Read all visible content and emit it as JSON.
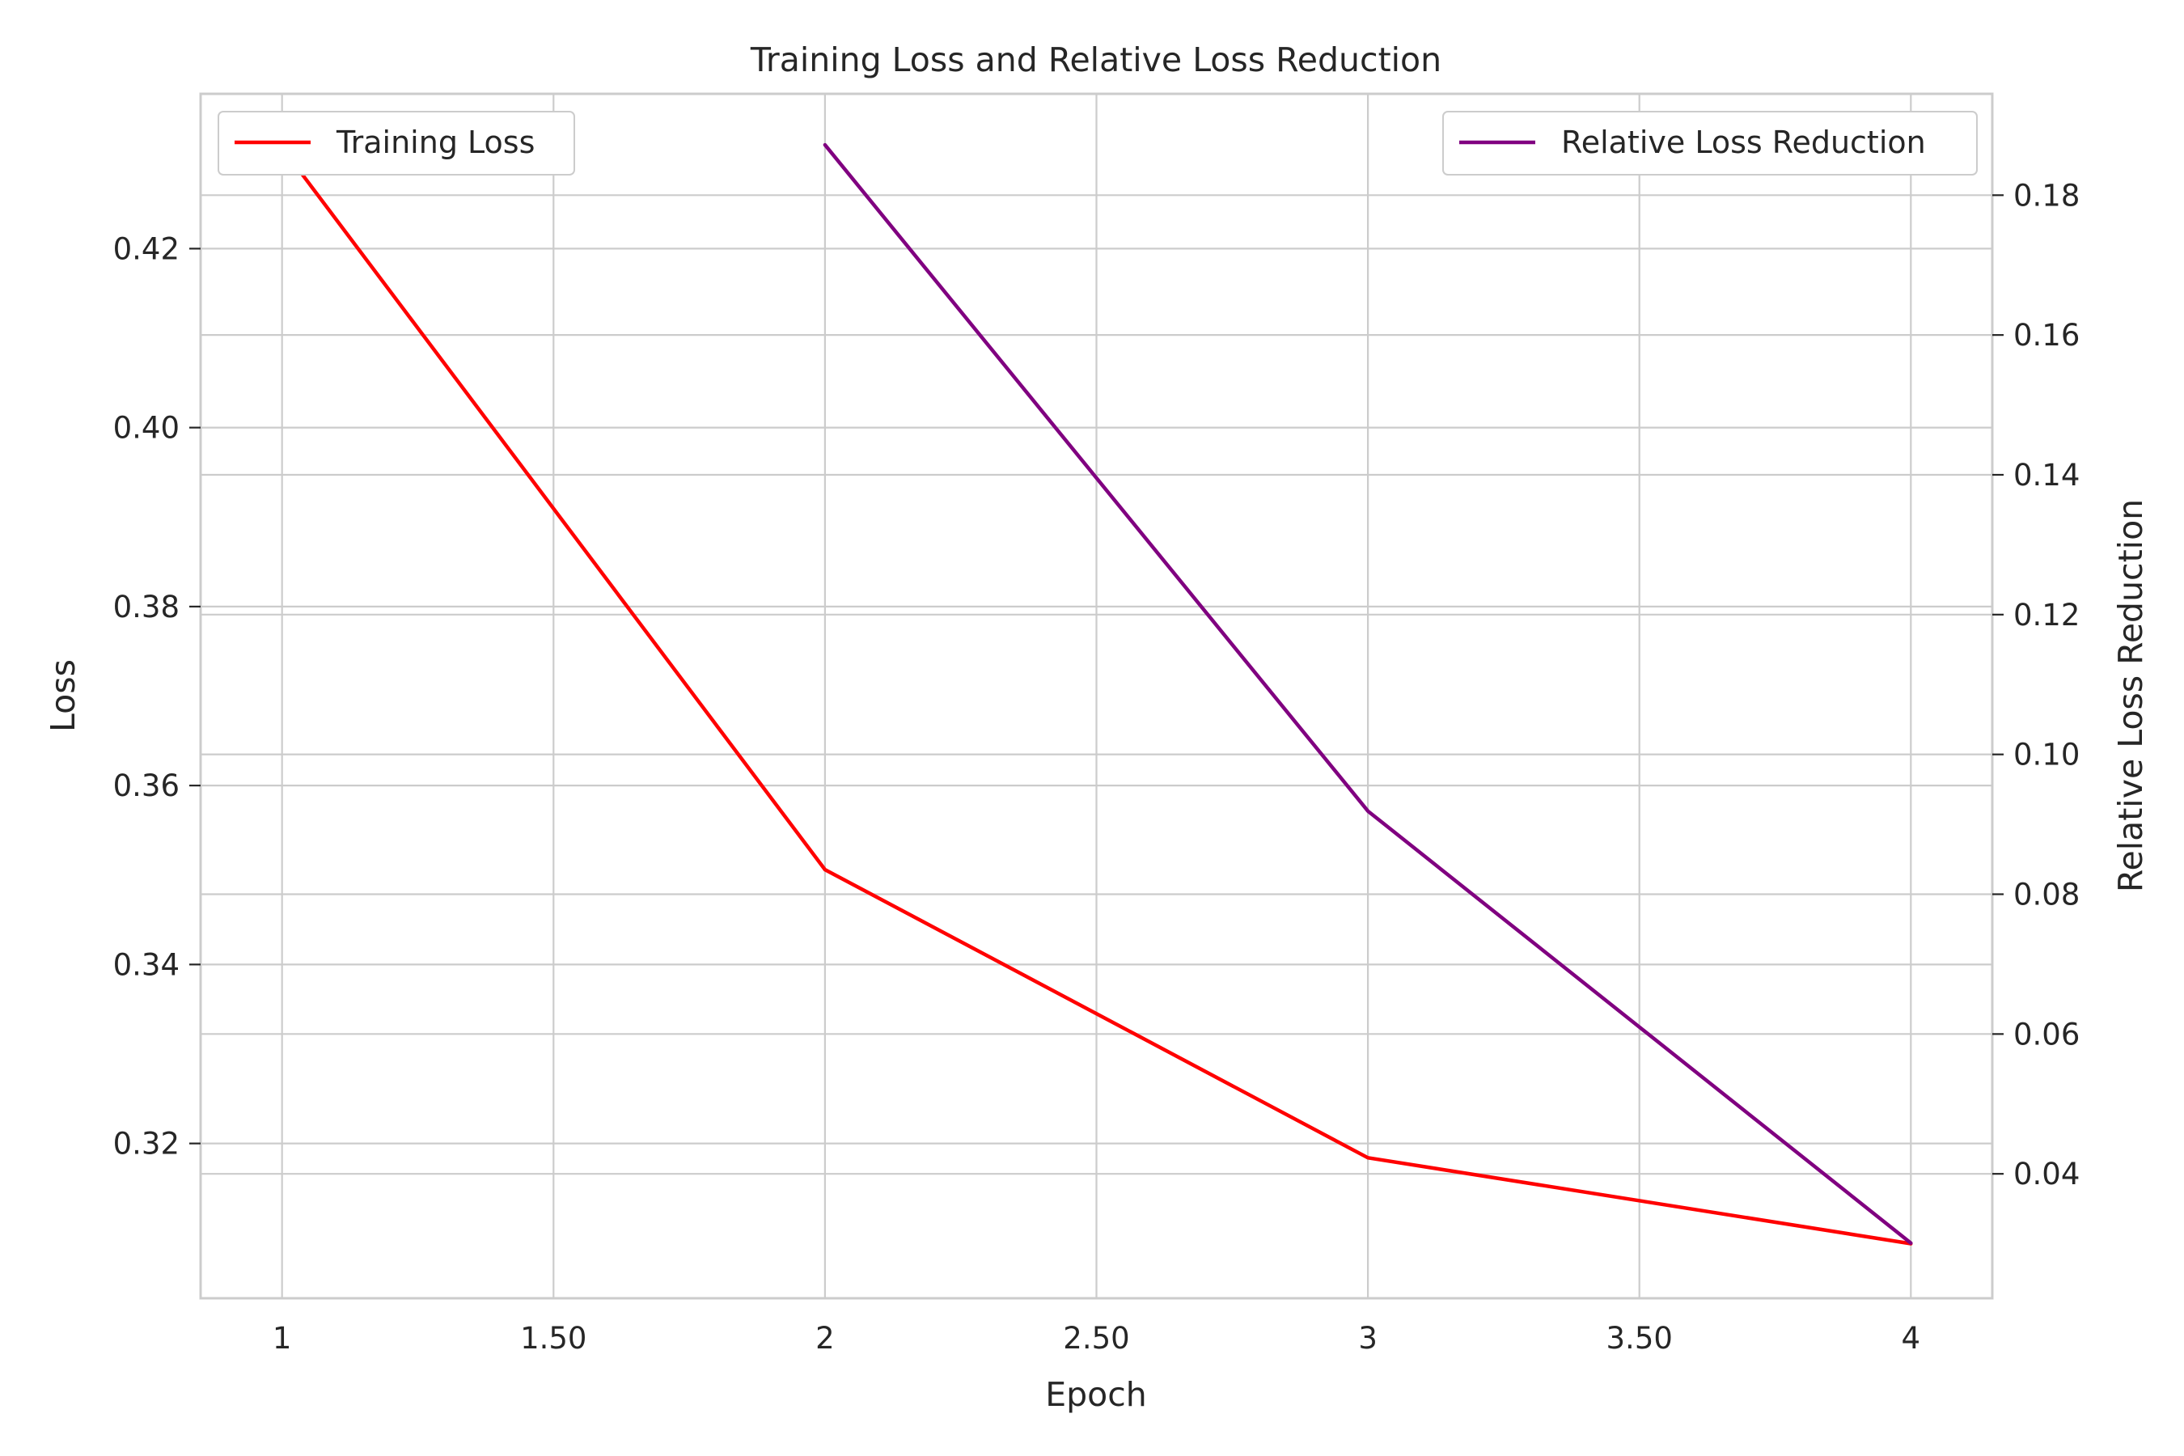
{
  "chart_data": {
    "type": "line",
    "title": "Training Loss and Relative Loss Reduction",
    "xlabel": "Epoch",
    "ylabel_left": "Loss",
    "ylabel_right": "Relative Loss Reduction",
    "x_ticks": [
      1,
      1.5,
      2,
      2.5,
      3,
      3.5,
      4
    ],
    "x_tick_labels": [
      "1",
      "1.50",
      "2",
      "2.50",
      "3",
      "3.50",
      "4"
    ],
    "xlim": [
      0.85,
      4.15
    ],
    "y_left_ticks": [
      0.32,
      0.34,
      0.36,
      0.38,
      0.4,
      0.42
    ],
    "y_left_tick_labels": [
      "0.32",
      "0.34",
      "0.36",
      "0.38",
      "0.40",
      "0.42"
    ],
    "y_left_lim": [
      0.3027,
      0.4373
    ],
    "y_right_ticks": [
      0.04,
      0.06,
      0.08,
      0.1,
      0.12,
      0.14,
      0.16,
      0.18
    ],
    "y_right_tick_labels": [
      "0.04",
      "0.06",
      "0.08",
      "0.10",
      "0.12",
      "0.14",
      "0.16",
      "0.18"
    ],
    "y_right_lim": [
      0.0222,
      0.1945
    ],
    "grid": true,
    "series": [
      {
        "name": "Training Loss",
        "axis": "left",
        "color": "#ff0000",
        "x": [
          1,
          2,
          3,
          4
        ],
        "y": [
          0.4313,
          0.3506,
          0.3184,
          0.3088
        ],
        "legend_position": "upper left"
      },
      {
        "name": "Relative Loss Reduction",
        "axis": "right",
        "color": "#800080",
        "x": [
          2,
          3,
          4
        ],
        "y": [
          0.1872,
          0.0919,
          0.0301
        ],
        "legend_position": "upper right"
      }
    ]
  }
}
